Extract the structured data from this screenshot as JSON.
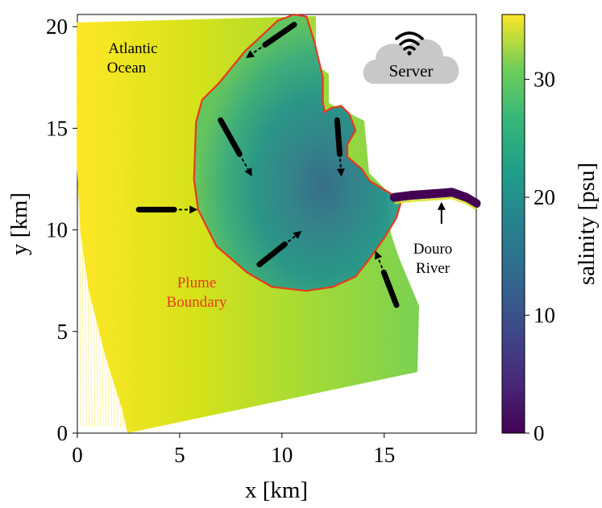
{
  "chart_data": {
    "type": "heatmap",
    "title": "",
    "xlabel": "x [km]",
    "ylabel": "y [km]",
    "xlim": [
      0,
      19.5
    ],
    "ylim": [
      0,
      20.6
    ],
    "xticks": [
      0,
      5,
      10,
      15
    ],
    "yticks": [
      0,
      5,
      10,
      15,
      20
    ],
    "colorbar": {
      "label": "salinity [psu]",
      "range": [
        0,
        35.5
      ],
      "ticks": [
        0,
        10,
        20,
        30
      ],
      "colormap": "viridis"
    },
    "annotations": {
      "ocean_line1": "Atlantic",
      "ocean_line2": "Ocean",
      "plume_line1": "Plume",
      "plume_line2": "Boundary",
      "river_line1": "Douro",
      "river_line2": "River",
      "server_label": "Server"
    },
    "plume_boundary": [
      [
        10.6,
        20.6
      ],
      [
        9.8,
        20.3
      ],
      [
        8.2,
        18.8
      ],
      [
        6.9,
        17.2
      ],
      [
        6.1,
        16.4
      ],
      [
        5.8,
        15.3
      ],
      [
        5.7,
        12.5
      ],
      [
        5.9,
        11.0
      ],
      [
        6.8,
        9.2
      ],
      [
        8.3,
        7.9
      ],
      [
        9.5,
        7.2
      ],
      [
        11.2,
        7.0
      ],
      [
        12.5,
        7.2
      ],
      [
        13.6,
        7.7
      ],
      [
        14.3,
        8.6
      ],
      [
        15.0,
        9.6
      ],
      [
        15.6,
        10.6
      ],
      [
        15.8,
        11.3
      ],
      [
        15.3,
        11.8
      ],
      [
        14.3,
        12.4
      ],
      [
        13.9,
        13.0
      ],
      [
        13.2,
        13.6
      ],
      [
        13.2,
        14.2
      ],
      [
        13.6,
        14.9
      ],
      [
        13.3,
        15.7
      ],
      [
        12.9,
        16.1
      ],
      [
        12.4,
        16.0
      ],
      [
        12.1,
        15.8
      ],
      [
        12.0,
        16.3
      ],
      [
        12.0,
        17.5
      ],
      [
        11.6,
        19.2
      ],
      [
        11.2,
        20.5
      ]
    ],
    "flow_arrows": [
      {
        "from": [
          10.6,
          20.1
        ],
        "to": [
          8.3,
          18.5
        ]
      },
      {
        "from": [
          7.0,
          15.4
        ],
        "to": [
          8.5,
          12.7
        ]
      },
      {
        "from": [
          3.0,
          11.0
        ],
        "to": [
          5.8,
          11.0
        ]
      },
      {
        "from": [
          8.9,
          8.3
        ],
        "to": [
          10.9,
          9.9
        ]
      },
      {
        "from": [
          12.7,
          15.4
        ],
        "to": [
          12.9,
          12.7
        ]
      },
      {
        "from": [
          15.6,
          6.3
        ],
        "to": [
          14.6,
          8.9
        ]
      },
      {
        "from": [
          17.8,
          10.3
        ],
        "to": [
          17.8,
          11.3
        ]
      }
    ],
    "river": [
      [
        15.5,
        11.6
      ],
      [
        16.3,
        11.7
      ],
      [
        17.0,
        11.75
      ],
      [
        17.7,
        11.8
      ],
      [
        18.3,
        11.85
      ],
      [
        19.0,
        11.6
      ],
      [
        19.5,
        11.3
      ]
    ],
    "colors": {
      "boundary": "#e8391d",
      "arrows": "#000000",
      "server_cloud": "#c8c8c8"
    }
  }
}
